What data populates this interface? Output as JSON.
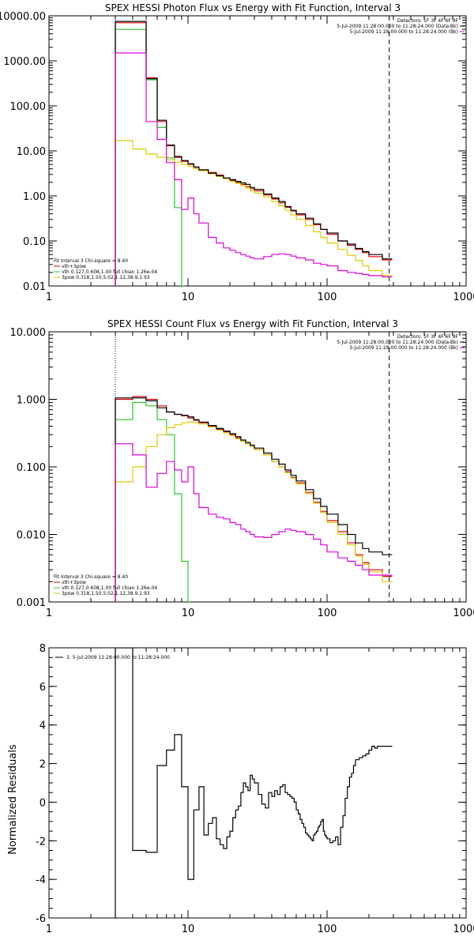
{
  "chart_data": [
    {
      "type": "line",
      "title": "SPEX HESSI Photon Flux vs Energy with Fit Function, Interval 3",
      "xlabel": "",
      "ylabel": "",
      "xscale": "log",
      "yscale": "log",
      "xlim": [
        1,
        1000
      ],
      "ylim": [
        0.01,
        10000
      ],
      "xticks": [
        1,
        10,
        100,
        1000
      ],
      "xtick_labels": [
        "1",
        "10",
        "100",
        "1000"
      ],
      "yticks": [
        0.01,
        0.1,
        1,
        10,
        100,
        1000,
        10000
      ],
      "ytick_labels": [
        "0.01",
        "0.10",
        "1.00",
        "10.00",
        "100.00",
        "1000.00",
        "10000.00"
      ],
      "header_right": [
        "Detectors: 1F 3F 4F 6F 9F",
        "5-Jul-2009 11:28:00.000 to 11:28:24.000 (Data-Bk)",
        "5-Jul-2009 11:28:00.000 to 11:28:24.000 (Bk)"
      ],
      "legend_title": "Fit Interval 3   Chi-square = 8.40",
      "vlines": [
        {
          "x": 3.0,
          "style": "dotted",
          "color": "#000000"
        },
        {
          "x": 280,
          "style": "dashed",
          "color": "#000000"
        }
      ],
      "series": [
        {
          "name": "vth+3pow",
          "color": "#dd0000",
          "x": [
            3,
            4,
            5,
            6,
            7,
            8,
            9,
            10,
            11,
            12,
            14,
            16,
            18,
            20,
            22,
            24,
            26,
            28,
            30,
            35,
            40,
            45,
            50,
            55,
            60,
            70,
            80,
            90,
            100,
            120,
            140,
            160,
            180,
            200,
            250,
            280
          ],
          "y": [
            7000,
            7000,
            420,
            45,
            13,
            7.2,
            5.9,
            5.0,
            4.3,
            3.8,
            3.3,
            2.9,
            2.5,
            2.2,
            2.0,
            1.8,
            1.6,
            1.45,
            1.3,
            1.05,
            0.85,
            0.7,
            0.56,
            0.46,
            0.38,
            0.3,
            0.23,
            0.18,
            0.14,
            0.1,
            0.08,
            0.065,
            0.055,
            0.045,
            0.038,
            0.038
          ]
        },
        {
          "name": "vth 0.127,0.608,1.00  full chian 1.26e-04",
          "color": "#22cc22",
          "x": [
            3,
            4,
            5,
            6,
            7,
            8,
            9
          ],
          "y": [
            5000,
            5000,
            380,
            33,
            7,
            0.55,
            0.01
          ]
        },
        {
          "name": "3pow 0.318,1.50,5.02,1.12,38.9,1.93",
          "color": "#ddcc00",
          "x": [
            3,
            4,
            5,
            6,
            7,
            8,
            9,
            10,
            11,
            12,
            14,
            16,
            18,
            20,
            22,
            24,
            26,
            28,
            30,
            35,
            40,
            45,
            50,
            55,
            60,
            70,
            80,
            90,
            100,
            120,
            140,
            160,
            180,
            200,
            250,
            280
          ],
          "y": [
            17,
            11,
            8.5,
            7.2,
            6.3,
            5.6,
            5.0,
            4.5,
            4.0,
            3.6,
            3.1,
            2.7,
            2.4,
            2.1,
            1.9,
            1.7,
            1.5,
            1.3,
            1.15,
            0.95,
            0.75,
            0.6,
            0.48,
            0.38,
            0.3,
            0.22,
            0.16,
            0.12,
            0.09,
            0.065,
            0.048,
            0.037,
            0.028,
            0.022,
            0.017,
            0.017
          ]
        },
        {
          "name": "Data-Bk",
          "color": "#000000",
          "x": [
            3,
            4,
            5,
            6,
            7,
            8,
            9,
            10,
            11,
            12,
            14,
            16,
            18,
            20,
            22,
            24,
            26,
            28,
            30,
            35,
            40,
            45,
            50,
            55,
            60,
            70,
            80,
            90,
            100,
            120,
            140,
            160,
            180,
            200,
            250,
            280
          ],
          "y": [
            7500,
            7500,
            400,
            48,
            13.5,
            7.5,
            6.1,
            5.2,
            4.4,
            3.8,
            3.2,
            2.8,
            2.5,
            2.3,
            2.1,
            1.95,
            1.8,
            1.55,
            1.4,
            1.1,
            0.9,
            0.75,
            0.58,
            0.48,
            0.4,
            0.32,
            0.24,
            0.18,
            0.15,
            0.1,
            0.085,
            0.068,
            0.058,
            0.05,
            0.04,
            0.04
          ]
        },
        {
          "name": "Bk",
          "color": "#dd00dd",
          "x": [
            3,
            4,
            5,
            6,
            7,
            8,
            9,
            10,
            11,
            12,
            14,
            16,
            18,
            20,
            22,
            24,
            26,
            28,
            30,
            35,
            40,
            45,
            50,
            55,
            60,
            70,
            80,
            90,
            100,
            120,
            140,
            160,
            180,
            200,
            250,
            280
          ],
          "y": [
            1500,
            1500,
            45,
            18,
            5.5,
            2.3,
            0.5,
            0.9,
            0.4,
            0.25,
            0.12,
            0.09,
            0.07,
            0.062,
            0.055,
            0.05,
            0.046,
            0.042,
            0.04,
            0.045,
            0.05,
            0.052,
            0.05,
            0.046,
            0.042,
            0.038,
            0.032,
            0.03,
            0.028,
            0.022,
            0.02,
            0.019,
            0.018,
            0.017,
            0.016,
            0.016
          ]
        }
      ]
    },
    {
      "type": "line",
      "title": "SPEX HESSI Count Flux vs Energy with Fit Function, Interval 3",
      "xlabel": "",
      "ylabel": "",
      "xscale": "log",
      "yscale": "log",
      "xlim": [
        1,
        1000
      ],
      "ylim": [
        0.001,
        10
      ],
      "xticks": [
        1,
        10,
        100,
        1000
      ],
      "xtick_labels": [
        "1",
        "10",
        "100",
        "1000"
      ],
      "yticks": [
        0.001,
        0.01,
        0.1,
        1,
        10
      ],
      "ytick_labels": [
        "0.001",
        "0.010",
        "0.100",
        "1.000",
        "10.000"
      ],
      "header_right": [
        "Detectors: 1F 3F 4F 6F 9F",
        "5-Jul-2009 11:28:00.000 to 11:28:24.000 (Data-Bk)",
        "5-Jul-2009 11:28:00.000 to 11:28:24.000 (Bk)"
      ],
      "legend_title": "Fit Interval 3   Chi-square = 8.40",
      "vlines": [
        {
          "x": 3.0,
          "style": "dotted",
          "color": "#000000"
        },
        {
          "x": 280,
          "style": "dashed",
          "color": "#000000"
        }
      ],
      "series": [
        {
          "name": "vth+3pow",
          "color": "#dd0000",
          "x": [
            3,
            4,
            5,
            6,
            7,
            8,
            9,
            10,
            11,
            12,
            14,
            16,
            18,
            20,
            22,
            24,
            26,
            28,
            30,
            35,
            40,
            45,
            50,
            55,
            60,
            70,
            80,
            90,
            100,
            120,
            140,
            160,
            180,
            200,
            250,
            280
          ],
          "y": [
            1.0,
            1.1,
            1.0,
            0.8,
            0.65,
            0.6,
            0.57,
            0.53,
            0.49,
            0.45,
            0.4,
            0.36,
            0.33,
            0.3,
            0.27,
            0.24,
            0.22,
            0.2,
            0.18,
            0.15,
            0.12,
            0.1,
            0.085,
            0.07,
            0.058,
            0.042,
            0.03,
            0.022,
            0.016,
            0.011,
            0.0075,
            0.005,
            0.0038,
            0.003,
            0.0024,
            0.0024
          ]
        },
        {
          "name": "vth 0.127,0.608,1.00  full chian 1.26e-04",
          "color": "#22cc22",
          "x": [
            3,
            4,
            5,
            6,
            7,
            8,
            9,
            10
          ],
          "y": [
            0.5,
            0.9,
            0.8,
            0.5,
            0.3,
            0.04,
            0.004,
            0.001
          ]
        },
        {
          "name": "3pow 0.318,1.50,5.02,1.12,38.9,1.93",
          "color": "#ddcc00",
          "x": [
            3,
            4,
            5,
            6,
            7,
            8,
            9,
            10,
            11,
            12,
            14,
            16,
            18,
            20,
            22,
            24,
            26,
            28,
            30,
            35,
            40,
            45,
            50,
            55,
            60,
            70,
            80,
            90,
            100,
            120,
            140,
            160,
            180,
            200,
            250,
            280
          ],
          "y": [
            0.06,
            0.1,
            0.2,
            0.3,
            0.38,
            0.42,
            0.45,
            0.46,
            0.45,
            0.43,
            0.39,
            0.35,
            0.32,
            0.29,
            0.26,
            0.24,
            0.22,
            0.2,
            0.18,
            0.15,
            0.12,
            0.1,
            0.082,
            0.068,
            0.056,
            0.04,
            0.029,
            0.021,
            0.015,
            0.01,
            0.007,
            0.0048,
            0.0036,
            0.0028,
            0.002,
            0.002
          ]
        },
        {
          "name": "Data-Bk",
          "color": "#000000",
          "x": [
            3,
            4,
            5,
            6,
            7,
            8,
            9,
            10,
            11,
            12,
            14,
            16,
            18,
            20,
            22,
            24,
            26,
            28,
            30,
            35,
            40,
            45,
            50,
            55,
            60,
            70,
            80,
            90,
            100,
            120,
            140,
            160,
            180,
            200,
            250,
            280
          ],
          "y": [
            1.05,
            1.05,
            0.95,
            0.75,
            0.65,
            0.6,
            0.58,
            0.55,
            0.5,
            0.46,
            0.41,
            0.37,
            0.34,
            0.31,
            0.28,
            0.25,
            0.23,
            0.21,
            0.19,
            0.16,
            0.13,
            0.11,
            0.09,
            0.075,
            0.062,
            0.046,
            0.034,
            0.026,
            0.02,
            0.014,
            0.01,
            0.0075,
            0.0062,
            0.0055,
            0.005,
            0.005
          ]
        },
        {
          "name": "Bk",
          "color": "#dd00dd",
          "x": [
            3,
            4,
            5,
            6,
            7,
            8,
            9,
            10,
            11,
            12,
            14,
            16,
            18,
            20,
            22,
            24,
            26,
            28,
            30,
            35,
            40,
            45,
            50,
            55,
            60,
            70,
            80,
            90,
            100,
            120,
            140,
            160,
            180,
            200,
            250,
            280
          ],
          "y": [
            0.22,
            0.15,
            0.05,
            0.08,
            0.12,
            0.09,
            0.06,
            0.1,
            0.04,
            0.025,
            0.02,
            0.018,
            0.017,
            0.015,
            0.014,
            0.012,
            0.011,
            0.01,
            0.0092,
            0.009,
            0.01,
            0.011,
            0.012,
            0.0115,
            0.011,
            0.01,
            0.0085,
            0.007,
            0.0055,
            0.0045,
            0.004,
            0.0035,
            0.003,
            0.0025,
            0.0025,
            0.0025
          ]
        }
      ]
    },
    {
      "type": "line",
      "title": "",
      "xlabel": "",
      "ylabel": "Normalized Residuals",
      "xscale": "log",
      "yscale": "linear",
      "xlim": [
        1,
        1000
      ],
      "ylim": [
        -6,
        8
      ],
      "xticks": [
        1,
        10,
        100,
        1000
      ],
      "xtick_labels": [
        "1",
        "10",
        "100",
        "1000"
      ],
      "yticks": [
        -6,
        -4,
        -2,
        0,
        2,
        4,
        6,
        8
      ],
      "ytick_labels": [
        "-6",
        "-4",
        "-2",
        "0",
        "2",
        "4",
        "6",
        "8"
      ],
      "legend_title": "3. 5-Jul-2009 11:28:00.000 to 11:28:24.000",
      "series": [
        {
          "name": "3. 5-Jul-2009 11:28:00.000 to 11:28:24.000",
          "color": "#000000",
          "x": [
            3,
            4,
            5,
            6,
            7,
            8,
            9,
            10,
            11,
            12,
            13,
            14,
            15,
            16,
            17,
            18,
            19,
            20,
            21,
            22,
            23,
            24,
            25,
            26,
            27,
            28,
            29,
            30,
            32,
            34,
            36,
            38,
            40,
            42,
            44,
            46,
            48,
            50,
            52,
            54,
            56,
            58,
            60,
            62,
            64,
            66,
            68,
            70,
            72,
            74,
            76,
            78,
            80,
            82,
            84,
            86,
            88,
            90,
            92,
            94,
            96,
            98,
            100,
            105,
            110,
            115,
            120,
            125,
            130,
            135,
            140,
            145,
            150,
            155,
            160,
            170,
            180,
            190,
            200,
            210,
            220,
            230,
            240,
            250,
            260,
            270,
            280
          ],
          "y": [
            8,
            -2.5,
            -2.6,
            1.9,
            2.7,
            3.5,
            0.8,
            -4.0,
            -0.4,
            0.8,
            -1.7,
            -1.1,
            -0.8,
            -1.9,
            -2.2,
            -2.4,
            -1.8,
            -1.5,
            -0.8,
            -0.4,
            -0.2,
            0.5,
            1.0,
            0.8,
            0.6,
            1.4,
            1.2,
            1.0,
            0.4,
            -0.1,
            -0.3,
            0.5,
            0.3,
            0.6,
            0.4,
            0.8,
            0.9,
            0.5,
            0.4,
            0.3,
            0.2,
            0.0,
            -0.4,
            -0.6,
            -0.9,
            -1.1,
            -1.3,
            -1.6,
            -1.7,
            -1.8,
            -1.9,
            -2.0,
            -1.7,
            -1.6,
            -1.5,
            -1.3,
            -1.2,
            -1.0,
            -0.9,
            -1.5,
            -1.7,
            -1.8,
            -1.9,
            -2.1,
            -2.0,
            -1.8,
            -2.2,
            -1.3,
            -0.7,
            0.2,
            0.8,
            1.3,
            1.5,
            1.9,
            2.2,
            2.3,
            2.4,
            2.5,
            2.7,
            2.9,
            2.8,
            2.9,
            2.9,
            2.9,
            2.9,
            2.9,
            2.9
          ]
        }
      ]
    }
  ]
}
